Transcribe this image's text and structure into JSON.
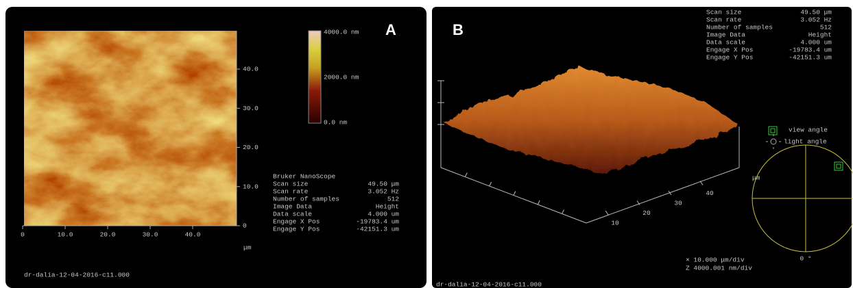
{
  "panel_a": {
    "letter": "A",
    "x_ticks": [
      "0",
      "10.0",
      "20.0",
      "30.0",
      "40.0"
    ],
    "y_ticks": [
      "40.0",
      "30.0",
      "20.0",
      "10.0",
      "0"
    ],
    "x_unit": "μm",
    "colorbar": [
      "4000.0 nm",
      "2000.0 nm",
      "0.0 nm"
    ],
    "info_title": "Bruker NanoScope",
    "info": [
      [
        "Scan size",
        "49.50 μm"
      ],
      [
        "Scan rate",
        "3.052 Hz"
      ],
      [
        "Number of samples",
        "512"
      ],
      [
        "Image Data",
        "Height"
      ],
      [
        "Data scale",
        "4.000 um"
      ],
      [
        "Engage X Pos",
        "-19783.4 um"
      ],
      [
        "Engage Y Pos",
        "-42151.3 um"
      ]
    ],
    "file": "dr-dalia-12-04-2016-c11.000"
  },
  "panel_b": {
    "letter": "B",
    "info": [
      [
        "Scan size",
        "49.50 μm"
      ],
      [
        "Scan rate",
        "3.052 Hz"
      ],
      [
        "Number of samples",
        "512"
      ],
      [
        "Image Data",
        "Height"
      ],
      [
        "Data scale",
        "4.000 um"
      ],
      [
        "Engage X Pos",
        "-19783.4 um"
      ],
      [
        "Engage Y Pos",
        "-42151.3 um"
      ]
    ],
    "axis_ticks": [
      "10",
      "20",
      "30",
      "40"
    ],
    "axis_unit": "μm",
    "view_angle": "view angle",
    "light_angle": "light angle",
    "angle_zero": "0 °",
    "scale_x": "× 10.000 μm/div",
    "scale_z": "Z 4000.001 nm/div",
    "file": "dr-dalia-12-04-2016-c11.000"
  }
}
